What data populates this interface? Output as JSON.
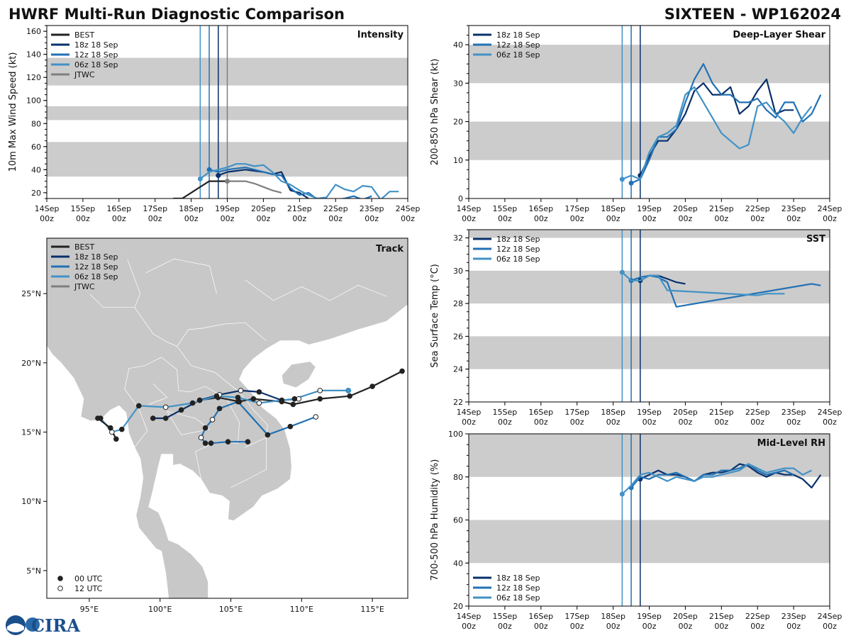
{
  "header": {
    "title": "HWRF Multi-Run Diagnostic Comparison",
    "storm": "SIXTEEN - WP162024"
  },
  "logo": {
    "text": "CIRA"
  },
  "colors": {
    "best": "#222222",
    "run18z": "#08306b",
    "run12z": "#2171b5",
    "run06z": "#4292c6",
    "jtwc": "#7f7f7f",
    "band": "#cccccc",
    "land": "#c8c8c8"
  },
  "legend_runs": [
    "BEST",
    "18z 18 Sep",
    "12z 18 Sep",
    "06z 18 Sep",
    "JTWC"
  ],
  "track_point_legend": [
    "00 UTC",
    "12 UTC"
  ],
  "time_axis": {
    "tick_values": [
      0,
      1,
      2,
      3,
      4,
      5,
      6,
      7,
      8,
      9,
      10
    ],
    "tick_day": [
      "14Sep",
      "15Sep",
      "16Sep",
      "17Sep",
      "18Sep",
      "19Sep",
      "20Sep",
      "21Sep",
      "22Sep",
      "23Sep",
      "24Sep"
    ],
    "tick_hour": [
      "00z",
      "00z",
      "00z",
      "00z",
      "00z",
      "00z",
      "00z",
      "00z",
      "00z",
      "00z",
      "00z"
    ],
    "range_days": [
      0,
      10
    ],
    "init_lines_days": {
      "run06z": 4.25,
      "run12z": 4.5,
      "run18z": 4.75,
      "jtwc": 5.0
    }
  },
  "chart_data": [
    {
      "id": "intensity",
      "type": "line",
      "title": "Intensity",
      "ylabel": "10m Max Wind Speed (kt)",
      "xlabel": "",
      "ylim": [
        15,
        165
      ],
      "yticks": [
        20,
        40,
        60,
        80,
        100,
        120,
        140,
        160
      ],
      "bands": [
        [
          34,
          64
        ],
        [
          83,
          95
        ],
        [
          113,
          137
        ]
      ],
      "vlines": [
        "run06z",
        "run12z",
        "run18z",
        "jtwc"
      ],
      "series": [
        {
          "name": "BEST",
          "key": "best",
          "x": [
            3.5,
            3.75,
            4.0,
            4.25,
            4.5,
            4.75,
            5.0
          ],
          "y": [
            15,
            15,
            20,
            25,
            30,
            30,
            30
          ],
          "marker_last": true
        },
        {
          "name": "JTWC",
          "key": "jtwc",
          "x": [
            5.0,
            5.25,
            5.5,
            5.75,
            6.0,
            6.25,
            6.5
          ],
          "y": [
            30,
            30,
            30,
            28,
            25,
            22,
            20
          ]
        },
        {
          "name": "18z 18 Sep",
          "key": "run18z",
          "x": [
            4.75,
            5.0,
            5.25,
            5.5,
            5.75,
            6.0,
            6.25,
            6.5,
            6.75,
            7.0,
            7.25
          ],
          "y": [
            35,
            38,
            39,
            40,
            39,
            38,
            36,
            38,
            22,
            20,
            15
          ],
          "marker_first": true
        },
        {
          "name": "12z 18 Sep",
          "key": "run12z",
          "x": [
            4.5,
            4.75,
            5.0,
            5.25,
            5.5,
            5.75,
            6.0,
            6.25,
            6.5,
            6.75,
            7.0,
            7.25,
            7.5,
            7.75,
            8.0,
            8.25,
            8.5,
            8.75,
            9.0
          ],
          "y": [
            40,
            38,
            40,
            41,
            42,
            40,
            38,
            36,
            35,
            24,
            18,
            20,
            14,
            13,
            14,
            15,
            17,
            14,
            17
          ],
          "marker_first": true
        },
        {
          "name": "06z 18 Sep",
          "key": "run06z",
          "x": [
            4.25,
            4.5,
            4.75,
            5.0,
            5.25,
            5.5,
            5.75,
            6.0,
            6.25,
            6.5,
            6.75,
            7.0,
            7.25,
            7.5,
            7.75,
            8.0,
            8.25,
            8.5,
            8.75,
            9.0,
            9.25,
            9.5,
            9.75
          ],
          "y": [
            32,
            38,
            40,
            42,
            45,
            45,
            43,
            44,
            38,
            30,
            27,
            22,
            18,
            15,
            16,
            27,
            23,
            21,
            26,
            25,
            14,
            21,
            21
          ],
          "marker_first": true
        }
      ]
    },
    {
      "id": "shear",
      "type": "line",
      "title": "Deep-Layer Shear",
      "ylabel": "200-850 hPa Shear (kt)",
      "xlabel": "",
      "ylim": [
        0,
        45
      ],
      "yticks": [
        0,
        10,
        20,
        30,
        40
      ],
      "bands": [
        [
          10,
          20
        ],
        [
          30,
          40
        ]
      ],
      "vlines": [
        "run06z",
        "run12z",
        "run18z"
      ],
      "series": [
        {
          "name": "18z 18 Sep",
          "key": "run18z",
          "x": [
            4.75,
            5.0,
            5.25,
            5.5,
            5.75,
            6.0,
            6.25,
            6.5,
            6.75,
            7.0,
            7.25,
            7.5,
            7.75,
            8.0,
            8.25,
            8.5,
            8.75,
            9.0
          ],
          "y": [
            6,
            11,
            15,
            15,
            18,
            22,
            28,
            30,
            27,
            27,
            29,
            22,
            24,
            28,
            31,
            22,
            23,
            23
          ],
          "marker_first": true
        },
        {
          "name": "12z 18 Sep",
          "key": "run12z",
          "x": [
            4.5,
            4.75,
            5.0,
            5.25,
            5.5,
            5.75,
            6.0,
            6.25,
            6.5,
            6.75,
            7.0,
            7.25,
            7.5,
            7.75,
            8.0,
            8.25,
            8.5,
            8.75,
            9.0,
            9.25,
            9.5,
            9.75
          ],
          "y": [
            4,
            5,
            10,
            16,
            16,
            18,
            25,
            31,
            35,
            30,
            27,
            27,
            25,
            25,
            26,
            23,
            21,
            25,
            25,
            20,
            22,
            27
          ],
          "marker_first": true
        },
        {
          "name": "06z 18 Sep",
          "key": "run06z",
          "x": [
            4.25,
            4.5,
            4.75,
            5.0,
            5.25,
            5.5,
            5.75,
            6.0,
            6.25,
            6.5,
            6.75,
            7.0,
            7.25,
            7.5,
            7.75,
            8.0,
            8.25,
            8.5,
            8.75,
            9.0,
            9.25,
            9.5
          ],
          "y": [
            5,
            6,
            5,
            12,
            16,
            17,
            19,
            27,
            29,
            25,
            21,
            17,
            15,
            13,
            14,
            24,
            25,
            22,
            20,
            17,
            21,
            24
          ],
          "marker_first": true
        }
      ]
    },
    {
      "id": "track",
      "type": "scatter",
      "title": "Track",
      "xlabel": "",
      "ylabel": "",
      "xlim": [
        92,
        117.5
      ],
      "ylim": [
        3,
        29
      ],
      "xticks": [
        95,
        100,
        105,
        110,
        115
      ],
      "xtick_labels": [
        "95°E",
        "100°E",
        "105°E",
        "110°E",
        "115°E"
      ],
      "yticks": [
        5,
        10,
        15,
        20,
        25
      ],
      "ytick_labels": [
        "5°N",
        "10°N",
        "15°N",
        "20°N",
        "25°N"
      ],
      "series": [
        {
          "name": "BEST",
          "key": "best",
          "lon": [
            117.1,
            115.0,
            113.4,
            111.3,
            109.4,
            108.6,
            106.6,
            105.6,
            104.1,
            102.8
          ],
          "lat": [
            19.4,
            18.3,
            17.6,
            17.4,
            17.0,
            17.2,
            17.4,
            17.2,
            17.5,
            17.3
          ],
          "t12": [
            false,
            false,
            false,
            false,
            false,
            false,
            false,
            false,
            false,
            false
          ]
        },
        {
          "name": "18z 18 Sep",
          "key": "run18z",
          "lon": [
            109.8,
            108.6,
            107.0,
            105.7,
            104.2,
            102.8,
            101.5,
            100.4,
            99.5
          ],
          "lat": [
            17.4,
            17.3,
            17.9,
            18.0,
            17.7,
            17.3,
            16.6,
            16.0,
            16.0
          ],
          "t12": [
            true,
            false,
            false,
            true,
            true,
            false,
            false,
            false,
            false
          ]
        },
        {
          "name": "12z 18 Sep",
          "key": "run12z",
          "lon": [
            111.0,
            109.2,
            107.6,
            105.5,
            104.2,
            103.7,
            103.2,
            102.9,
            103.2,
            103.6,
            104.8,
            106.2
          ],
          "lat": [
            16.1,
            15.4,
            14.8,
            17.2,
            16.7,
            15.9,
            15.3,
            14.6,
            14.2,
            14.2,
            14.3,
            14.3
          ],
          "t12": [
            true,
            false,
            false,
            false,
            false,
            true,
            false,
            true,
            false,
            false,
            false,
            false
          ]
        },
        {
          "name": "06z 18 Sep",
          "key": "run06z",
          "lon": [
            113.3,
            111.3,
            109.5,
            107.0,
            105.5,
            104.0,
            102.3,
            100.4,
            98.5,
            97.3,
            96.6,
            95.8
          ],
          "lat": [
            18.0,
            18.0,
            17.4,
            17.1,
            17.5,
            17.6,
            17.1,
            16.8,
            16.9,
            15.2,
            15.0,
            16.0
          ],
          "t12": [
            false,
            true,
            false,
            true,
            false,
            false,
            false,
            true,
            false,
            false,
            true,
            false
          ]
        },
        {
          "name": "BEST-west",
          "key": "best",
          "lon": [
            95.6,
            96.5,
            96.9
          ],
          "lat": [
            16.0,
            15.3,
            14.5
          ],
          "t12": [
            false,
            false,
            false
          ]
        }
      ]
    },
    {
      "id": "sst",
      "type": "line",
      "title": "SST",
      "ylabel": "Sea Surface Temp (°C)",
      "xlabel": "",
      "ylim": [
        22,
        32.5
      ],
      "yticks": [
        22,
        24,
        26,
        28,
        30,
        32
      ],
      "bands": [
        [
          24,
          26
        ],
        [
          28,
          30
        ],
        [
          32,
          32.5
        ]
      ],
      "vlines": [
        "run06z",
        "run12z",
        "run18z"
      ],
      "series": [
        {
          "name": "18z 18 Sep",
          "key": "run18z",
          "x": [
            4.75,
            5.0,
            5.25,
            5.5,
            5.75,
            6.0
          ],
          "y": [
            29.4,
            29.7,
            29.7,
            29.5,
            29.3,
            29.2
          ],
          "marker_first": true
        },
        {
          "name": "12z 18 Sep",
          "key": "run12z",
          "x": [
            4.5,
            4.75,
            5.0,
            5.25,
            5.5,
            5.75,
            9.5,
            9.75
          ],
          "y": [
            29.4,
            29.6,
            29.7,
            29.6,
            29.3,
            27.8,
            29.2,
            29.1
          ],
          "marker_first": true
        },
        {
          "name": "06z 18 Sep",
          "key": "run06z",
          "x": [
            4.25,
            4.5,
            4.75,
            5.0,
            5.25,
            5.5,
            8.0,
            8.25,
            8.5,
            8.75
          ],
          "y": [
            29.9,
            29.4,
            29.4,
            29.7,
            29.7,
            28.8,
            28.5,
            28.6,
            28.6,
            28.6
          ],
          "marker_first": true
        }
      ]
    },
    {
      "id": "rh",
      "type": "line",
      "title": "Mid-Level RH",
      "ylabel": "700-500 hPa Humidity (%)",
      "xlabel": "",
      "ylim": [
        20,
        100
      ],
      "yticks": [
        20,
        40,
        60,
        80,
        100
      ],
      "bands": [
        [
          40,
          60
        ],
        [
          80,
          100
        ]
      ],
      "vlines": [
        "run06z",
        "run12z",
        "run18z"
      ],
      "series": [
        {
          "name": "18z 18 Sep",
          "key": "run18z",
          "x": [
            4.75,
            5.0,
            5.25,
            5.5,
            5.75,
            6.0,
            6.25,
            6.5,
            6.75,
            7.0,
            7.25,
            7.5,
            7.75,
            8.0,
            8.25,
            8.5,
            8.75,
            9.0,
            9.25,
            9.5,
            9.75
          ],
          "y": [
            79,
            81,
            83,
            81,
            81,
            80,
            78,
            81,
            82,
            82,
            83,
            86,
            85,
            82,
            80,
            82,
            81,
            81,
            79,
            75,
            81
          ],
          "marker_first": true
        },
        {
          "name": "12z 18 Sep",
          "key": "run12z",
          "x": [
            4.5,
            4.75,
            5.0,
            5.25,
            5.5,
            5.75,
            6.0,
            6.25,
            6.5,
            6.75,
            7.0,
            7.25,
            7.5,
            7.75,
            8.0,
            8.25,
            8.5,
            8.75,
            9.0
          ],
          "y": [
            75,
            80,
            79,
            81,
            81,
            82,
            80,
            78,
            81,
            81,
            83,
            83,
            84,
            86,
            83,
            81,
            82,
            83,
            81
          ],
          "marker_first": true
        },
        {
          "name": "06z 18 Sep",
          "key": "run06z",
          "x": [
            4.25,
            4.5,
            4.75,
            5.0,
            5.25,
            5.5,
            5.75,
            6.0,
            6.25,
            6.5,
            6.75,
            7.0,
            7.25,
            7.5,
            7.75,
            8.0,
            8.25,
            8.5,
            8.75,
            9.0,
            9.25,
            9.5
          ],
          "y": [
            72,
            76,
            81,
            82,
            80,
            78,
            80,
            79,
            78,
            80,
            80,
            81,
            82,
            83,
            86,
            84,
            82,
            83,
            84,
            84,
            81,
            83
          ],
          "marker_first": true
        }
      ]
    }
  ]
}
